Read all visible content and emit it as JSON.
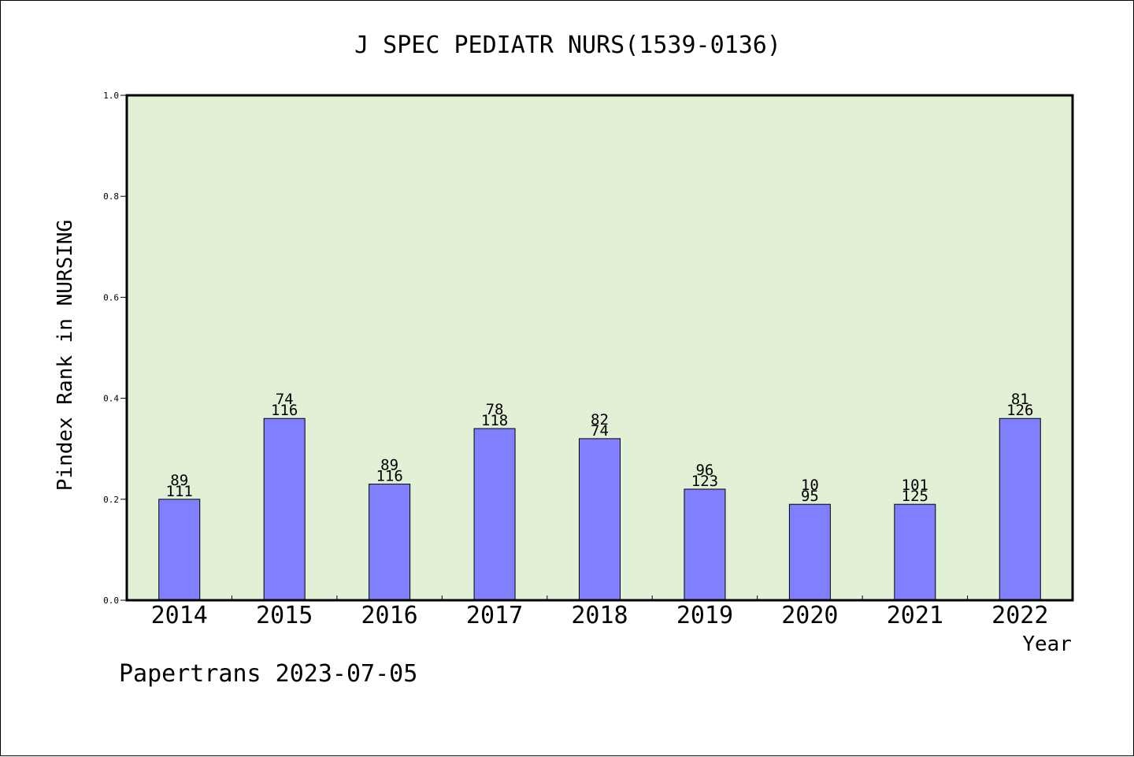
{
  "chart_data": {
    "type": "bar",
    "title": "J SPEC PEDIATR NURS(1539-0136)",
    "xlabel": "Year",
    "ylabel": "Pindex Rank in NURSING",
    "ylim": [
      0,
      1.0
    ],
    "yticks": [
      "0.0",
      "0.2",
      "0.4",
      "0.6",
      "0.8",
      "1.0"
    ],
    "categories": [
      "2014",
      "2015",
      "2016",
      "2017",
      "2018",
      "2019",
      "2020",
      "2021",
      "2022"
    ],
    "values": [
      0.2,
      0.36,
      0.23,
      0.34,
      0.32,
      0.22,
      0.19,
      0.19,
      0.36
    ],
    "labels_top": [
      "89",
      "74",
      "89",
      "78",
      "82",
      "96",
      "10",
      "101",
      "81"
    ],
    "labels_bottom": [
      "111",
      "116",
      "116",
      "118",
      "74",
      "123",
      "95",
      "125",
      "126"
    ],
    "grid": false,
    "colors": {
      "plot_background": "#e2f0d6",
      "bar_fill": "#8080ff",
      "bar_stroke": "#000000"
    }
  },
  "footer": {
    "text": "Papertrans 2023-07-05"
  }
}
